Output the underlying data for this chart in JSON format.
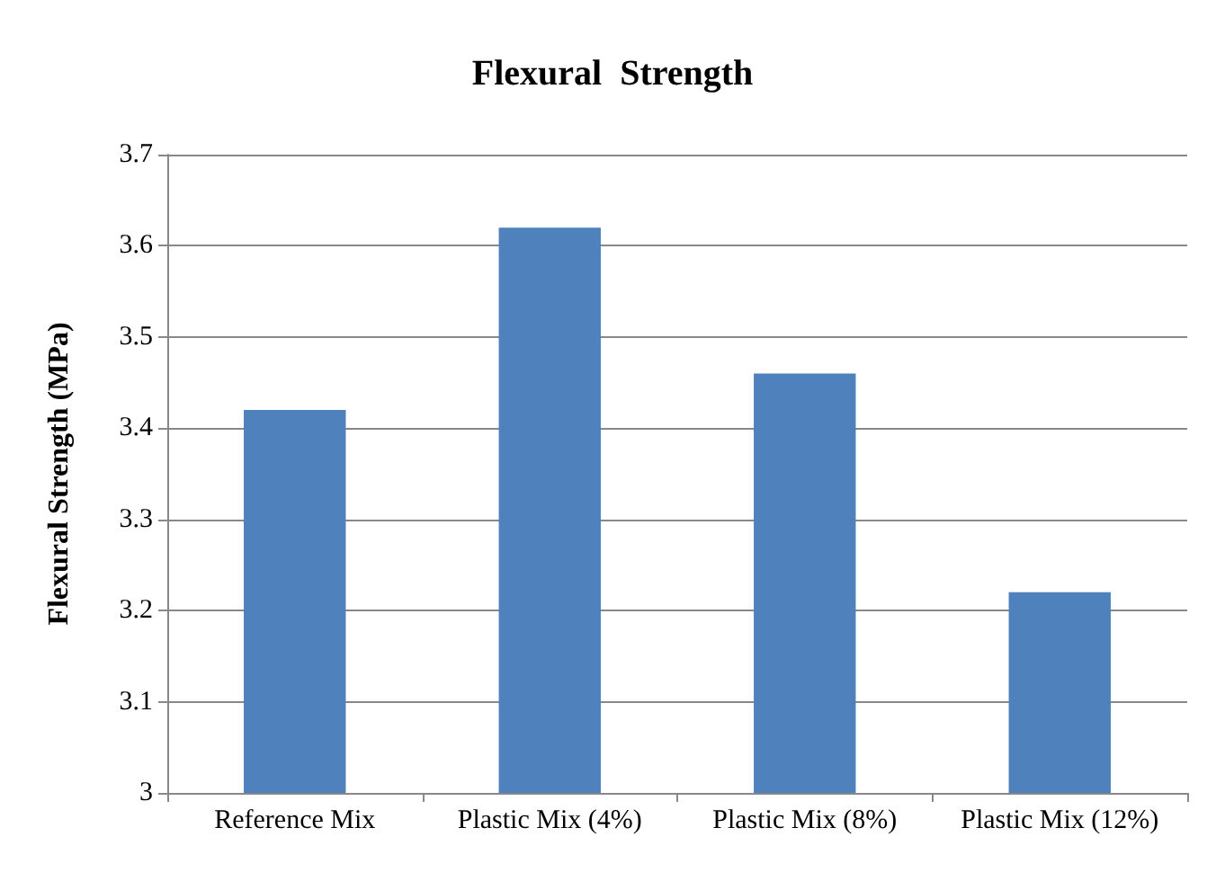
{
  "chart_data": {
    "type": "bar",
    "title": "Flexural  Strength",
    "ylabel": "Flexural Strength (MPa)",
    "categories": [
      "Reference Mix",
      "Plastic Mix (4%)",
      "Plastic Mix (8%)",
      "Plastic Mix (12%)"
    ],
    "values": [
      3.42,
      3.62,
      3.46,
      3.22
    ],
    "color": "#4f81bd",
    "ylim": [
      3,
      3.7
    ],
    "yticks": [
      3,
      3.1,
      3.2,
      3.3,
      3.4,
      3.5,
      3.6,
      3.7
    ],
    "grid": "y"
  }
}
